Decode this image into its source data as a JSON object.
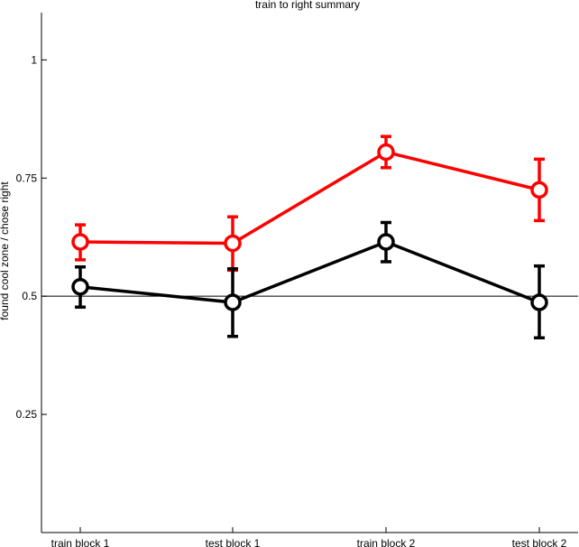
{
  "chart_data": {
    "type": "line",
    "title": "train to right summary",
    "xlabel": "",
    "ylabel": "found cool zone / chose right",
    "categories": [
      "train block 1",
      "test block 1",
      "train block 2",
      "test block 2"
    ],
    "ylim": [
      0.0,
      1.1
    ],
    "yticks": [
      0.25,
      0.5,
      0.75,
      1
    ],
    "ytick_labels": [
      "0.25",
      "0.5",
      "0.75",
      "1"
    ],
    "reference_line": 0.5,
    "grid": false,
    "series": [
      {
        "color": "#ff0000",
        "marker": "open-circle",
        "values": [
          0.615,
          0.612,
          0.805,
          0.725
        ],
        "err_low": [
          0.577,
          0.555,
          0.772,
          0.66
        ],
        "err_high": [
          0.651,
          0.668,
          0.838,
          0.79
        ]
      },
      {
        "color": "#000000",
        "marker": "open-circle",
        "values": [
          0.52,
          0.487,
          0.615,
          0.487
        ],
        "err_low": [
          0.477,
          0.415,
          0.573,
          0.412
        ],
        "err_high": [
          0.562,
          0.558,
          0.656,
          0.564
        ]
      }
    ]
  }
}
